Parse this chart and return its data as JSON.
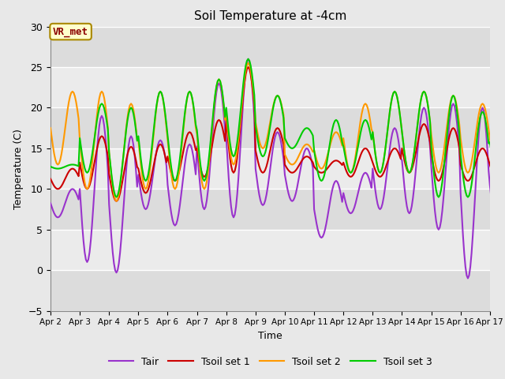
{
  "title": "Soil Temperature at -4cm",
  "xlabel": "Time",
  "ylabel": "Temperature (C)",
  "ylim": [
    -5,
    30
  ],
  "yticks": [
    -5,
    0,
    5,
    10,
    15,
    20,
    25,
    30
  ],
  "xlim": [
    0,
    360
  ],
  "xtick_labels": [
    "Apr 2",
    "Apr 3",
    "Apr 4",
    "Apr 5",
    "Apr 6",
    "Apr 7",
    "Apr 8",
    "Apr 9",
    "Apr 10",
    "Apr 11",
    "Apr 12",
    "Apr 13",
    "Apr 14",
    "Apr 15",
    "Apr 16",
    "Apr 17"
  ],
  "xtick_positions": [
    0,
    24,
    48,
    72,
    96,
    120,
    144,
    168,
    192,
    216,
    240,
    264,
    288,
    312,
    336,
    360
  ],
  "annotation_text": "VR_met",
  "annotation_color": "#8B0000",
  "annotation_bg": "#FFFFCC",
  "bg_color": "#E8E8E8",
  "stripe_color": "#D0D0D0",
  "white_stripe": "#F0F0F0",
  "line_colors": {
    "Tair": "#9933CC",
    "Tsoil1": "#CC0000",
    "Tsoil2": "#FF9900",
    "Tsoil3": "#00CC00"
  },
  "legend_labels": [
    "Tair",
    "Tsoil set 1",
    "Tsoil set 2",
    "Tsoil set 3"
  ],
  "tair_max": [
    10,
    19,
    16.5,
    16,
    15.5,
    23,
    26,
    17,
    15,
    11,
    12,
    17.5,
    20,
    20.5,
    20,
    16
  ],
  "tair_min": [
    6.5,
    1,
    -0.3,
    7.5,
    5.5,
    7.5,
    6.5,
    8,
    8.5,
    4,
    7,
    7.5,
    7,
    5,
    -1,
    5
  ],
  "ts1_max": [
    12.5,
    16.5,
    15.2,
    15.5,
    17,
    18.5,
    25,
    17.5,
    14,
    13.5,
    15,
    15,
    18,
    17.5,
    15,
    15
  ],
  "ts1_min": [
    10,
    10,
    8.5,
    9.5,
    11,
    11.5,
    12,
    12,
    12,
    12,
    11.5,
    11.5,
    12,
    11,
    11,
    11
  ],
  "ts2_max": [
    22,
    22,
    20.5,
    22,
    22,
    23.5,
    25.5,
    21.5,
    15.5,
    17,
    20.5,
    22,
    22,
    21.5,
    20.5,
    20.5
  ],
  "ts2_min": [
    13,
    10,
    8.5,
    10,
    10,
    10,
    13,
    15,
    13,
    12.5,
    12,
    12,
    12,
    12,
    12,
    12
  ],
  "ts3_max": [
    13,
    20.5,
    20,
    22,
    22,
    23.5,
    26,
    21.5,
    17.5,
    18.5,
    18.5,
    22,
    22,
    21.5,
    19.5,
    19.5
  ],
  "ts3_min": [
    12.5,
    12,
    9,
    11,
    11,
    11,
    14,
    14,
    15,
    11,
    12,
    12,
    12,
    9,
    9,
    12
  ]
}
